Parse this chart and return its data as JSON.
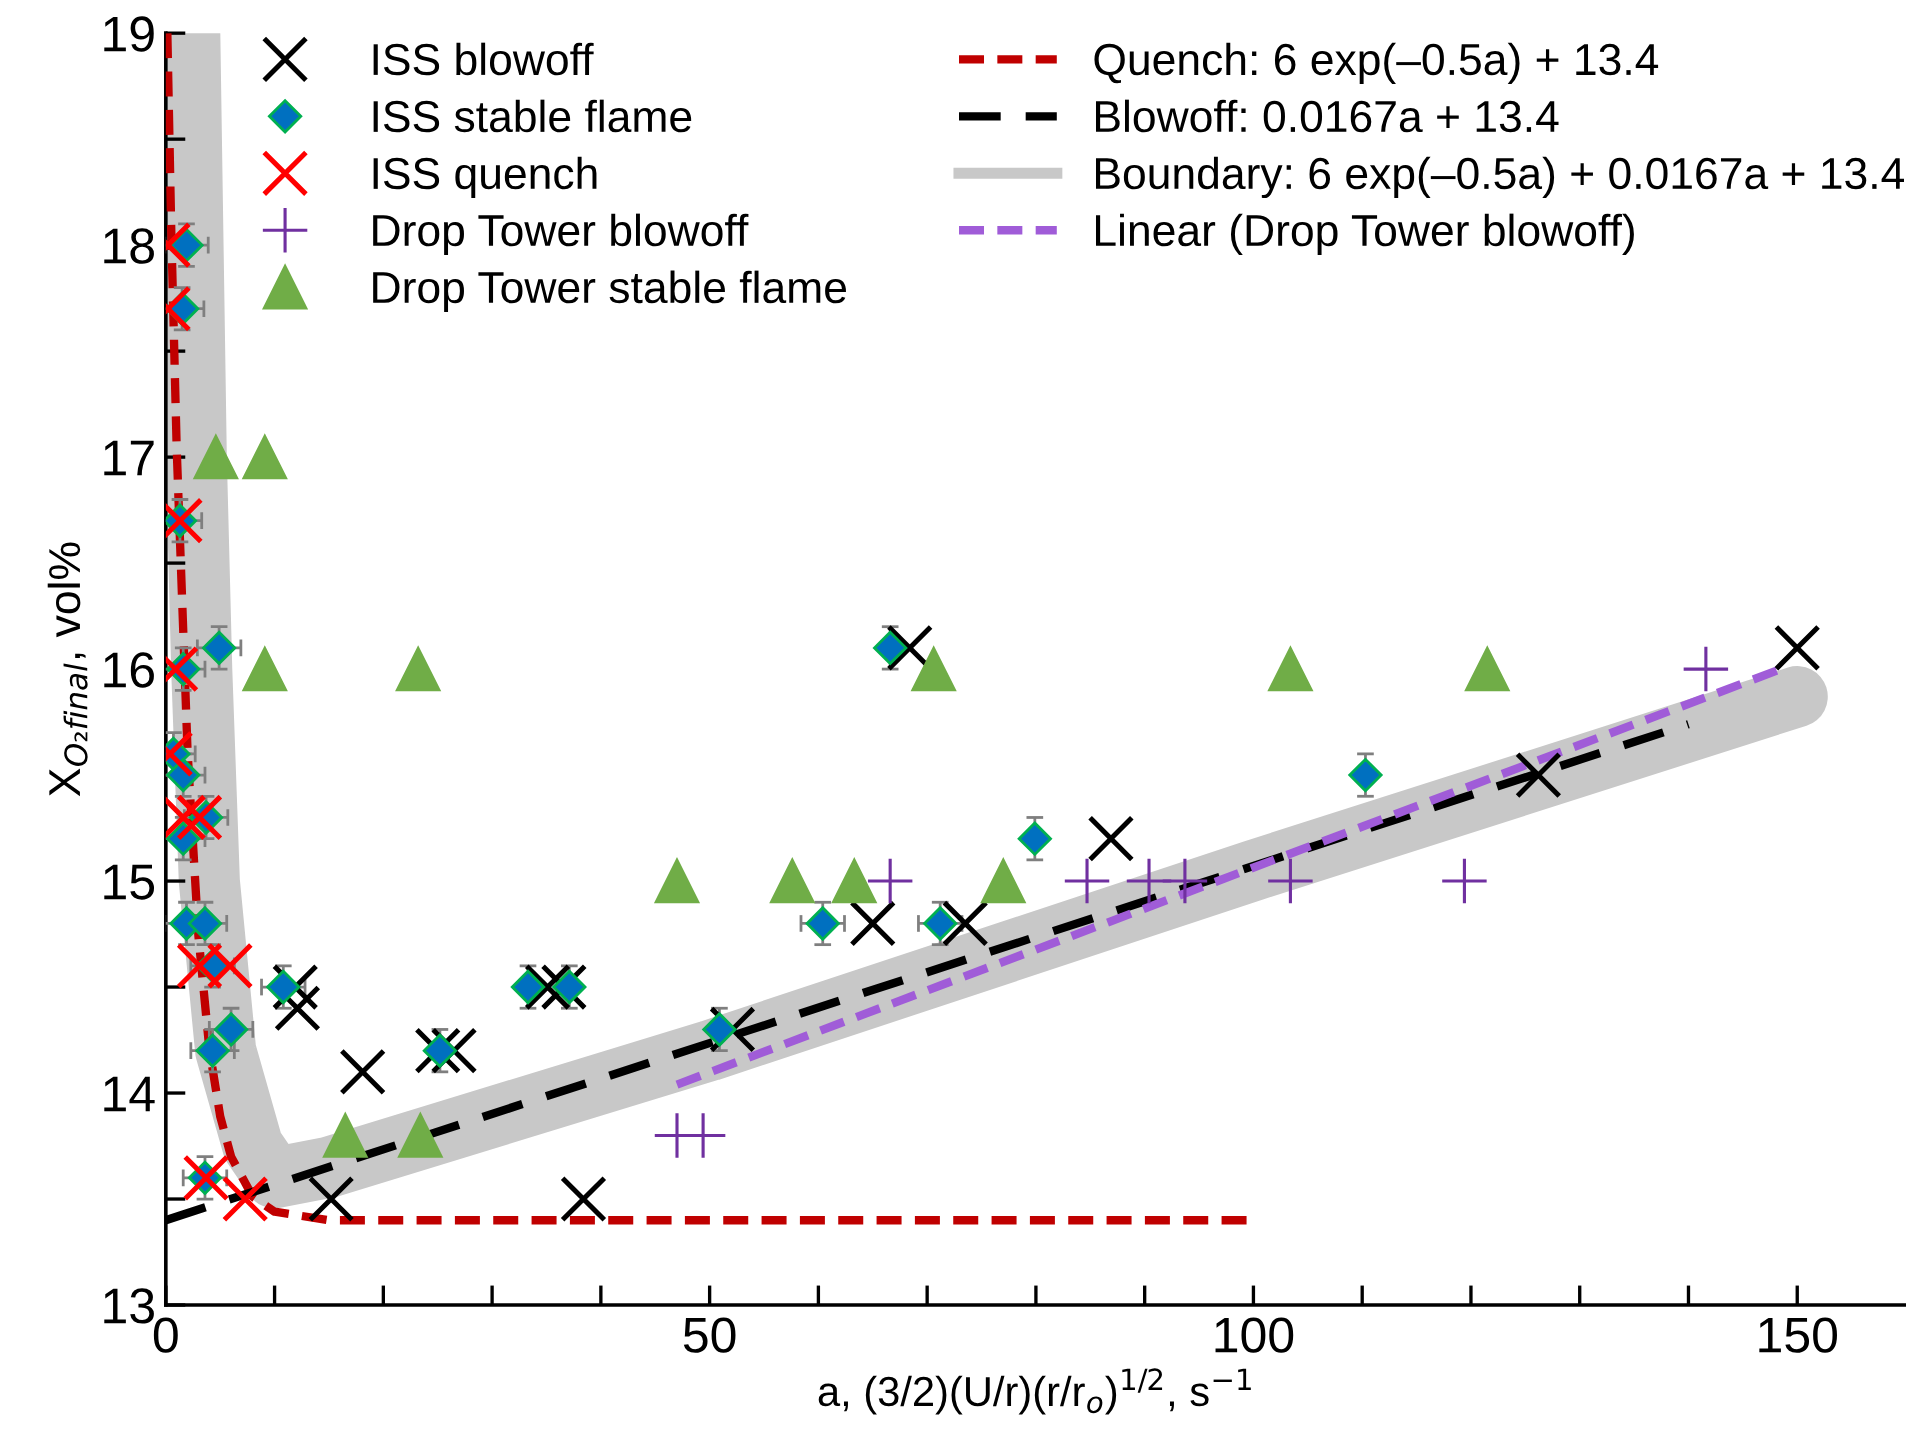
{
  "chart_data": {
    "type": "scatter",
    "xlabel": "a, (3/2)(U/r)(r/r$_{o}$)$^{1/2}$, s$^{−1}$",
    "ylabel": "X$_{O₂final}$, vol%",
    "xlim": [
      0,
      160
    ],
    "ylim": [
      13,
      19
    ],
    "xticks": [
      0,
      {
        "value": 10,
        "label": null
      },
      {
        "value": 20,
        "label": null
      },
      {
        "value": 30,
        "label": null
      },
      {
        "value": 40,
        "label": null
      },
      50,
      {
        "value": 60,
        "label": null
      },
      {
        "value": 70,
        "label": null
      },
      {
        "value": 80,
        "label": null
      },
      {
        "value": 90,
        "label": null
      },
      100,
      {
        "value": 110,
        "label": null
      },
      {
        "value": 120,
        "label": null
      },
      {
        "value": 130,
        "label": null
      },
      {
        "value": 140,
        "label": null
      },
      150
    ],
    "yticks": [
      13,
      {
        "value": 13.5,
        "label": null
      },
      14,
      {
        "value": 14.5,
        "label": null
      },
      15,
      {
        "value": 15.5,
        "label": null
      },
      16,
      {
        "value": 16.5,
        "label": null
      },
      17,
      {
        "value": 17.5,
        "label": null
      },
      18,
      {
        "value": 18.5,
        "label": null
      },
      19
    ],
    "grid": false,
    "legend": "top",
    "series": [
      {
        "name": "ISS blowoff",
        "marker": "cross",
        "color": "#000000",
        "x": [
          150,
          126.2,
          86.9,
          73.5,
          65,
          68.4,
          52.1,
          11.9,
          12.1,
          18.1,
          15.2,
          38.4,
          35.1,
          36.6,
          25,
          26.5
        ],
        "values": [
          16.1,
          15.5,
          15.2,
          14.8,
          14.8,
          16.1,
          14.3,
          14.5,
          14.4,
          14.1,
          13.5,
          13.5,
          14.5,
          14.5,
          14.2,
          14.2
        ]
      },
      {
        "name": "ISS stable flame",
        "marker": "diamond",
        "color": "#0070c0",
        "x": [
          1.9,
          1.5,
          1.3,
          4.9,
          1.6,
          0.7,
          1.6,
          3.7,
          1.6,
          1.9,
          3.6,
          4.3,
          10.8,
          6.0,
          4.3,
          3.6,
          33.3,
          37.1,
          25.2,
          66.6,
          60.4,
          71.2,
          79.9,
          50.9,
          110.3
        ],
        "values": [
          18.0,
          17.7,
          16.7,
          16.1,
          16.0,
          15.6,
          15.5,
          15.3,
          15.2,
          14.8,
          14.8,
          14.6,
          14.5,
          14.3,
          14.2,
          13.6,
          14.5,
          14.5,
          14.2,
          16.1,
          14.8,
          14.8,
          15.2,
          14.3,
          15.5
        ],
        "xerrors": [
          2,
          2,
          2,
          2,
          2,
          2,
          2,
          2,
          2,
          2,
          2,
          2,
          2,
          2,
          2,
          2,
          null,
          null,
          null,
          null,
          2,
          2,
          null,
          null,
          null
        ],
        "errors": [
          0.1,
          0.1,
          0.1,
          0.1,
          0.1,
          0.1,
          0.1,
          0.1,
          0.1,
          0.1,
          0.1,
          0.1,
          0.1,
          0.1,
          0.1,
          0.1,
          0.1,
          0.1,
          0.1,
          0.1,
          0.1,
          0.1,
          0.1,
          0.1,
          0.1
        ]
      },
      {
        "name": "ISS quench",
        "marker": "cross",
        "color": "#ff0000",
        "x": [
          0.2,
          0.2,
          1.3,
          0.9,
          0.4,
          1.6,
          3.1,
          3.1,
          5.9,
          3.7,
          7.3
        ],
        "values": [
          18.0,
          17.7,
          16.7,
          16.0,
          15.6,
          15.3,
          15.3,
          14.6,
          14.6,
          13.6,
          13.5
        ]
      },
      {
        "name": "Drop Tower blowoff",
        "color": "#7030a0",
        "x": [
          66.6,
          47,
          49.4,
          84.7,
          90.4,
          93.7,
          103.4,
          119.4,
          141.6
        ],
        "values": [
          15.0,
          13.8,
          13.8,
          15.0,
          15.0,
          15.0,
          15.0,
          15.0,
          16.0
        ]
      },
      {
        "name": "Drop Tower stable flame",
        "marker": "triangle",
        "color": "#70ad47",
        "x": [
          4.6,
          9.1,
          9.1,
          23.2,
          70.6,
          103.4,
          121.5,
          47,
          57.6,
          63.3,
          77,
          16.5,
          23.4
        ],
        "values": [
          17.0,
          17.0,
          16.0,
          16.0,
          16.0,
          16.0,
          16.0,
          15.0,
          15.0,
          15.0,
          15.0,
          13.8,
          13.8
        ]
      },
      {
        "name": "Quench: 6 exp(–0.5a) + 13.4",
        "type": "line",
        "line_style": "dashed",
        "color": "#c00000",
        "x": [
          0.14,
          0.5,
          1,
          2,
          3,
          4,
          5,
          6,
          8,
          10,
          15,
          100
        ],
        "values": [
          19.0,
          18.07,
          17.04,
          15.61,
          14.74,
          14.21,
          13.89,
          13.7,
          13.51,
          13.44,
          13.4,
          13.4
        ]
      },
      {
        "name": "Blowoff: 0.0167a + 13.4",
        "type": "line",
        "line_style": "longdash",
        "color": "#000000",
        "x": [
          0,
          140
        ],
        "values": [
          13.4,
          15.74
        ]
      },
      {
        "name": "Boundary: 6 exp(–0.5a) + 0.0167a + 13.4",
        "type": "line",
        "color": "#c8c8c8",
        "x": [
          2.2,
          2.8,
          3.3,
          4,
          5.5,
          8,
          10,
          15,
          50,
          100,
          150
        ],
        "values": [
          19,
          17,
          16,
          15,
          14.2,
          13.75,
          13.6,
          13.65,
          14.2,
          15.05,
          15.87
        ]
      },
      {
        "name": "Linear (Drop Tower blowoff)",
        "type": "line",
        "line_style": "dashed",
        "color": "#a05cd8",
        "x": [
          47,
          148.5
        ],
        "values": [
          14.04,
          16.0
        ]
      }
    ]
  }
}
